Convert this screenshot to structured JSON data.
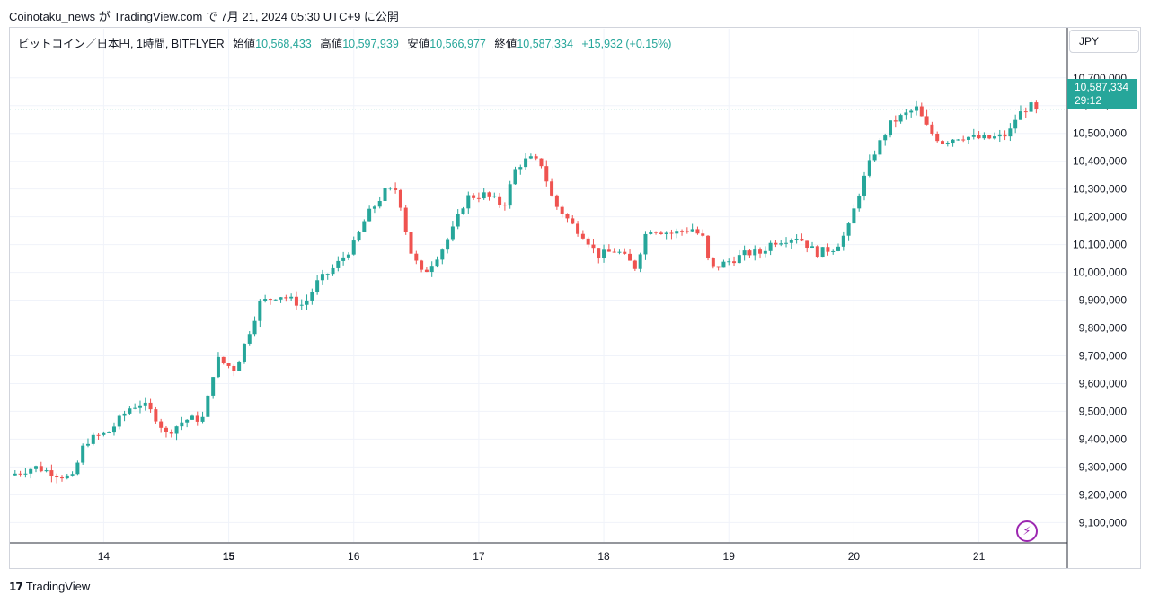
{
  "caption": "Coinotaku_news が TradingView.com で 7月 21, 2024 05:30 UTC+9 に公開",
  "legend": {
    "symbol": "ビットコイン／日本円, 1時間, BITFLYER",
    "open_label": "始値",
    "open_value": "10,568,433",
    "high_label": "高値",
    "high_value": "10,597,939",
    "low_label": "安値",
    "low_value": "10,566,977",
    "close_label": "終値",
    "close_value": "10,587,334",
    "change": "+15,932 (+0.15%)"
  },
  "currency": "JPY",
  "last_price_tag": {
    "price": "10,587,334",
    "countdown": "29:12"
  },
  "branding": "TradingView",
  "colors": {
    "up": "#26a69a",
    "down": "#ef5350",
    "grid": "#f0f3fa",
    "axis_text": "#131722"
  },
  "icons": {
    "alert": "lightning-icon"
  },
  "chart_data": {
    "type": "candlestick",
    "ylim": [
      9030000,
      10780000
    ],
    "y_ticks": [
      9100000,
      9200000,
      9300000,
      9400000,
      9500000,
      9600000,
      9700000,
      9800000,
      9900000,
      10000000,
      10100000,
      10200000,
      10300000,
      10400000,
      10500000,
      10600000,
      10700000
    ],
    "y_tick_labels": [
      "9,100,000",
      "9,200,000",
      "9,300,000",
      "9,400,000",
      "9,500,000",
      "9,600,000",
      "9,700,000",
      "9,800,000",
      "9,900,000",
      "10,000,000",
      "10,100,000",
      "10,200,000",
      "10,300,000",
      "10,400,000",
      "10,500,000",
      "10,600,000",
      "10,700,000"
    ],
    "x_labels": [
      {
        "label": "14",
        "day": 13.75
      },
      {
        "label": "15",
        "day": 14.75
      },
      {
        "label": "16",
        "day": 15.75
      },
      {
        "label": "17",
        "day": 16.75
      },
      {
        "label": "18",
        "day": 17.75
      },
      {
        "label": "19",
        "day": 18.75
      },
      {
        "label": "20",
        "day": 19.75
      },
      {
        "label": "21",
        "day": 20.75
      }
    ],
    "close_path": [
      [
        13.0,
        9270000
      ],
      [
        13.2,
        9300000
      ],
      [
        13.4,
        9270000
      ],
      [
        13.5,
        9260000
      ],
      [
        13.6,
        9390000
      ],
      [
        13.8,
        9430000
      ],
      [
        13.95,
        9510000
      ],
      [
        14.05,
        9530000
      ],
      [
        14.15,
        9490000
      ],
      [
        14.25,
        9420000
      ],
      [
        14.4,
        9470000
      ],
      [
        14.55,
        9475000
      ],
      [
        14.65,
        9690000
      ],
      [
        14.8,
        9650000
      ],
      [
        15.0,
        9890000
      ],
      [
        15.15,
        9920000
      ],
      [
        15.35,
        9880000
      ],
      [
        15.45,
        9960000
      ],
      [
        15.6,
        10020000
      ],
      [
        15.75,
        10100000
      ],
      [
        15.85,
        10200000
      ],
      [
        16.0,
        10290000
      ],
      [
        16.1,
        10300000
      ],
      [
        16.2,
        10080000
      ],
      [
        16.3,
        9990000
      ],
      [
        16.45,
        10080000
      ],
      [
        16.55,
        10160000
      ],
      [
        16.65,
        10270000
      ],
      [
        16.8,
        10280000
      ],
      [
        16.95,
        10240000
      ],
      [
        17.05,
        10380000
      ],
      [
        17.15,
        10410000
      ],
      [
        17.25,
        10390000
      ],
      [
        17.35,
        10250000
      ],
      [
        17.5,
        10170000
      ],
      [
        17.6,
        10130000
      ],
      [
        17.7,
        10060000
      ],
      [
        17.85,
        10080000
      ],
      [
        18.0,
        10020000
      ],
      [
        18.1,
        10160000
      ],
      [
        18.3,
        10140000
      ],
      [
        18.45,
        10160000
      ],
      [
        18.55,
        10120000
      ],
      [
        18.6,
        10010000
      ],
      [
        18.75,
        10040000
      ],
      [
        18.9,
        10070000
      ],
      [
        19.0,
        10070000
      ],
      [
        19.1,
        10110000
      ],
      [
        19.3,
        10130000
      ],
      [
        19.45,
        10070000
      ],
      [
        19.6,
        10090000
      ],
      [
        19.7,
        10150000
      ],
      [
        19.8,
        10300000
      ],
      [
        19.9,
        10420000
      ],
      [
        20.05,
        10540000
      ],
      [
        20.25,
        10590000
      ],
      [
        20.35,
        10510000
      ],
      [
        20.45,
        10470000
      ],
      [
        20.6,
        10490000
      ],
      [
        20.8,
        10480000
      ],
      [
        20.95,
        10490000
      ],
      [
        21.0,
        10510000
      ],
      [
        21.05,
        10560000
      ],
      [
        21.15,
        10600000
      ],
      [
        21.23,
        10587334
      ]
    ]
  }
}
